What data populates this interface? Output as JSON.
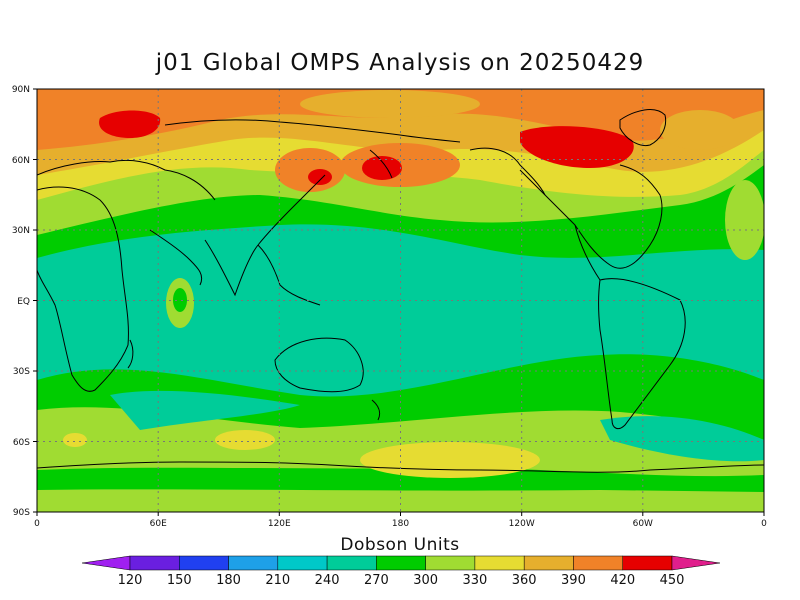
{
  "title": "j01 Global OMPS Analysis on 20250429",
  "map": {
    "lat_ticks": [
      "90N",
      "60N",
      "30N",
      "EQ",
      "30S",
      "60S",
      "90S"
    ],
    "lon_ticks": [
      "0",
      "60E",
      "120E",
      "180",
      "120W",
      "60W",
      "0"
    ],
    "grid": true
  },
  "colorbar": {
    "label": "Dobson Units",
    "levels": [
      "120",
      "150",
      "180",
      "210",
      "240",
      "270",
      "300",
      "330",
      "360",
      "390",
      "420",
      "450"
    ],
    "colors": [
      "#a020f0",
      "#6a1fe0",
      "#2040f0",
      "#1ea0e8",
      "#00c8c8",
      "#00cc99",
      "#00cc00",
      "#a0dc32",
      "#e6dc32",
      "#e6af2d",
      "#f08228",
      "#e60000",
      "#e01e8c"
    ]
  }
}
